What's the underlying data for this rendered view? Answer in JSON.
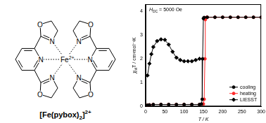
{
  "chart_data": {
    "type": "line",
    "x_label": "T / K",
    "y_label": {
      "text": "χ",
      "subscript": "M",
      "rest": "T / cm³mol⁻¹K"
    },
    "annotation": {
      "text": "H",
      "subscript": "DC",
      "rest": " = 5000 Oe"
    },
    "xlim": [
      0,
      300
    ],
    "xticks": [
      0,
      50,
      100,
      150,
      200,
      250,
      300
    ],
    "ylim": [
      0,
      4.3
    ],
    "yticks": [
      0,
      1,
      2,
      3,
      4
    ],
    "grid": false,
    "legend": "lower right",
    "series": [
      {
        "name": "cooling",
        "color": "#000000",
        "marker": "circle",
        "line_style": "solid",
        "x": [
          300,
          280,
          260,
          240,
          220,
          200,
          180,
          160,
          152,
          150,
          148,
          147,
          145,
          140,
          120,
          100,
          80,
          60,
          40,
          20,
          10,
          5
        ],
        "values": [
          3.75,
          3.75,
          3.75,
          3.75,
          3.75,
          3.75,
          3.75,
          3.75,
          3.74,
          3.7,
          2.0,
          0.3,
          0.1,
          0.08,
          0.08,
          0.08,
          0.08,
          0.08,
          0.08,
          0.08,
          0.06,
          0.05
        ]
      },
      {
        "name": "heating",
        "color": "#ff2a2a",
        "marker": "circle",
        "line_style": "solid",
        "x": [
          5,
          10,
          20,
          40,
          60,
          80,
          100,
          120,
          140,
          150,
          152,
          154,
          155,
          158,
          160,
          180,
          200,
          220,
          240,
          260,
          280,
          300
        ],
        "values": [
          0.05,
          0.06,
          0.08,
          0.08,
          0.08,
          0.08,
          0.08,
          0.08,
          0.08,
          0.1,
          0.3,
          2.0,
          3.65,
          3.74,
          3.75,
          3.75,
          3.75,
          3.75,
          3.75,
          3.75,
          3.75,
          3.75
        ]
      },
      {
        "name": "LIESST",
        "color": "#000000",
        "marker": "diamond",
        "line_style": "solid",
        "x": [
          5,
          10,
          15,
          20,
          30,
          40,
          50,
          60,
          70,
          80,
          90,
          100,
          110,
          120,
          130,
          140
        ],
        "values": [
          1.3,
          1.8,
          2.2,
          2.5,
          2.75,
          2.82,
          2.8,
          2.6,
          2.3,
          2.05,
          1.95,
          1.9,
          1.9,
          1.9,
          1.95,
          2.0
        ]
      }
    ]
  },
  "structure": {
    "atoms": [
      "N",
      "N",
      "O",
      "N",
      "O",
      "N",
      "N",
      "O",
      "N",
      "O"
    ],
    "metal": {
      "symbol": "Fe",
      "charge": "2+"
    },
    "formula": {
      "main": "[Fe(pybox)",
      "subscript": "2",
      "close": "]",
      "superscript": "2+"
    }
  }
}
